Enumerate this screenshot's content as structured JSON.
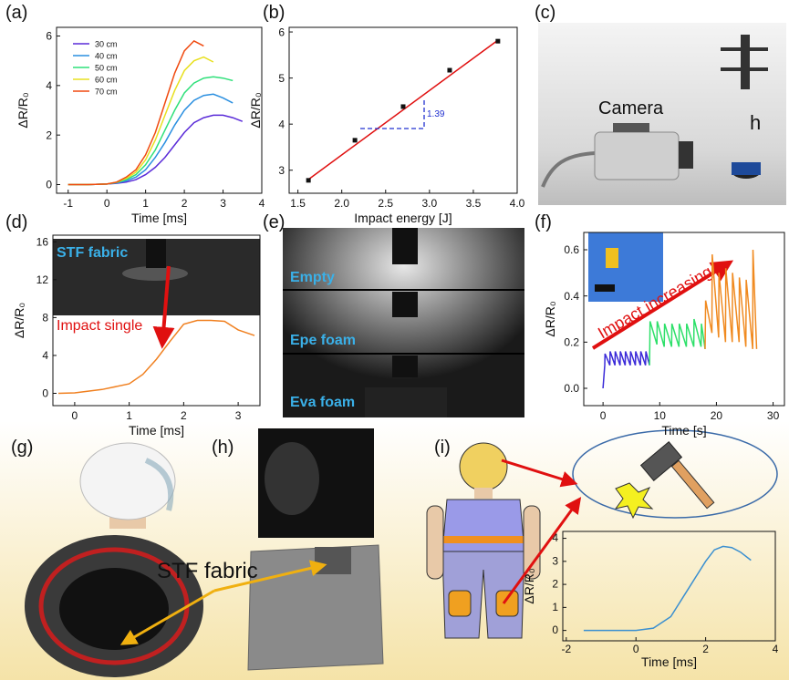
{
  "panels": [
    "(a)",
    "(b)",
    "(c)",
    "(d)",
    "(e)",
    "(f)",
    "(g)",
    "(h)",
    "(i)"
  ],
  "photo_labels": {
    "c": [
      "Camera",
      "h"
    ],
    "e": [
      "Empty",
      "Epe foam",
      "Eva foam"
    ],
    "gh": [
      "STF fabric"
    ]
  },
  "chart_data": [
    {
      "type": "line",
      "xlabel": "Time [ms]",
      "ylabel": "ΔR/R₀",
      "legend": "upper left",
      "xlim": [
        -1.3,
        4
      ],
      "xticks": [
        -1,
        0,
        1,
        2,
        3,
        4
      ],
      "ylim": [
        -0.35,
        6.35
      ],
      "yticks": [
        0,
        2,
        4,
        6
      ],
      "x": [
        -1,
        -0.5,
        0,
        0.25,
        0.5,
        0.75,
        1,
        1.25,
        1.5,
        1.75,
        2,
        2.25,
        2.5,
        2.75,
        3,
        3.25,
        3.5
      ],
      "series": [
        {
          "name": "30 cm",
          "color": "#5a2bd8",
          "values": [
            0,
            0,
            0.02,
            0.05,
            0.1,
            0.2,
            0.4,
            0.7,
            1.1,
            1.6,
            2.1,
            2.5,
            2.7,
            2.8,
            2.8,
            2.7,
            2.55
          ]
        },
        {
          "name": "40 cm",
          "color": "#2a8fe0",
          "values": [
            0,
            0,
            0.02,
            0.07,
            0.15,
            0.3,
            0.6,
            1.1,
            1.7,
            2.4,
            3.0,
            3.4,
            3.6,
            3.65,
            3.5,
            3.3,
            null
          ]
        },
        {
          "name": "50 cm",
          "color": "#2fe07a",
          "values": [
            0,
            0,
            0.02,
            0.08,
            0.2,
            0.4,
            0.8,
            1.4,
            2.2,
            3.0,
            3.7,
            4.1,
            4.3,
            4.35,
            4.3,
            4.2,
            null
          ]
        },
        {
          "name": "60 cm",
          "color": "#e8e020",
          "values": [
            0,
            0,
            0.02,
            0.1,
            0.25,
            0.5,
            1.0,
            1.8,
            2.8,
            3.8,
            4.6,
            5.0,
            5.15,
            4.95,
            null,
            null,
            null
          ]
        },
        {
          "name": "70 cm",
          "color": "#f04a10",
          "values": [
            0,
            0,
            0.02,
            0.1,
            0.3,
            0.6,
            1.2,
            2.1,
            3.3,
            4.5,
            5.4,
            5.8,
            5.6,
            null,
            null,
            null,
            null
          ]
        }
      ]
    },
    {
      "type": "scatter",
      "xlabel": "Impact energy [J]",
      "ylabel": "ΔR/R₀",
      "annotations": [
        "1.39"
      ],
      "xlim": [
        1.4,
        4.0
      ],
      "xticks": [
        1.5,
        {
          "value": 2,
          "label": "2.0"
        },
        2.5,
        {
          "value": 3,
          "label": "3.0"
        },
        3.5,
        {
          "value": 4,
          "label": "4.0"
        }
      ],
      "ylim": [
        2.5,
        6.1
      ],
      "yticks": [
        3,
        4,
        5,
        6
      ],
      "x": [
        1.62,
        2.15,
        2.7,
        3.23,
        3.78
      ],
      "values": [
        2.78,
        3.65,
        4.38,
        5.17,
        5.8
      ],
      "color": "#111111",
      "fit": {
        "x": [
          1.62,
          3.78
        ],
        "values": [
          2.8,
          5.82
        ],
        "color": "#e01010"
      }
    },
    {
      "type": "line",
      "xlabel": "Time [ms]",
      "ylabel": "ΔR/R₀",
      "annotations": [
        "STF fabric",
        "Impact single"
      ],
      "xlim": [
        -0.4,
        3.4
      ],
      "xticks": [
        0,
        1,
        2,
        3
      ],
      "ylim": [
        -1.3,
        16.7
      ],
      "yticks": [
        0,
        4,
        8,
        12,
        16
      ],
      "x": [
        -0.3,
        0,
        0.5,
        1,
        1.25,
        1.5,
        1.75,
        2,
        2.25,
        2.5,
        2.75,
        3,
        3.3
      ],
      "series": [
        {
          "color": "#f08020",
          "values": [
            0,
            0.05,
            0.4,
            1,
            2,
            3.6,
            5.5,
            7.3,
            7.7,
            7.7,
            7.6,
            6.7,
            6.1
          ]
        }
      ]
    },
    {
      "type": "line",
      "xlabel": "Time [s]",
      "ylabel": "ΔR/R₀",
      "annotations": [
        "Impact increasing"
      ],
      "xlim": [
        -3.4,
        32
      ],
      "xticks": [
        0,
        10,
        20,
        30
      ],
      "ylim": [
        -0.075,
        0.675
      ],
      "yticks": [
        {
          "value": 0,
          "label": "0.0"
        },
        0.2,
        0.4,
        0.6
      ],
      "series": [
        {
          "color": "#3a2ad8",
          "x": [
            0,
            0.3,
            0.35,
            1.2,
            1.25,
            2.1,
            2.15,
            3.0,
            3.05,
            3.9,
            3.95,
            4.8,
            4.85,
            5.7,
            5.75,
            6.6,
            6.65,
            7.5,
            7.55,
            8.2
          ],
          "values": [
            0,
            0.1,
            0.15,
            0.1,
            0.16,
            0.1,
            0.16,
            0.1,
            0.16,
            0.1,
            0.16,
            0.1,
            0.16,
            0.1,
            0.16,
            0.1,
            0.16,
            0.1,
            0.16,
            0.1
          ]
        },
        {
          "color": "#2ee06a",
          "x": [
            8.2,
            8.3,
            9.5,
            9.55,
            10.8,
            10.85,
            12.1,
            12.15,
            13.4,
            13.45,
            14.7,
            14.75,
            16.0,
            16.05,
            17.3,
            17.35,
            18.0
          ],
          "values": [
            0.1,
            0.29,
            0.19,
            0.29,
            0.18,
            0.28,
            0.18,
            0.28,
            0.18,
            0.28,
            0.18,
            0.28,
            0.18,
            0.3,
            0.18,
            0.28,
            0.17
          ]
        },
        {
          "color": "#f08a20",
          "x": [
            18,
            18.1,
            19.2,
            19.25,
            20.4,
            20.45,
            21.6,
            21.65,
            22.8,
            22.85,
            24.0,
            24.05,
            25.2,
            25.25,
            26.4,
            26.45,
            27.1
          ],
          "values": [
            0.17,
            0.38,
            0.24,
            0.58,
            0.22,
            0.5,
            0.2,
            0.52,
            0.2,
            0.5,
            0.2,
            0.48,
            0.18,
            0.47,
            0.17,
            0.6,
            0.17
          ]
        }
      ]
    },
    {
      "type": "line",
      "xlabel": "Time [ms]",
      "ylabel": "ΔR/R₀",
      "xlim": [
        -2.1,
        4
      ],
      "xticks": [
        -2,
        0,
        2,
        4
      ],
      "ylim": [
        -0.45,
        4.3
      ],
      "yticks": [
        0,
        1,
        2,
        3,
        4
      ],
      "x": [
        -1.5,
        -1,
        -0.5,
        0,
        0.5,
        1,
        1.5,
        2,
        2.25,
        2.5,
        2.75,
        3,
        3.3
      ],
      "series": [
        {
          "color": "#3a8fd0",
          "values": [
            0,
            0,
            0,
            0,
            0.1,
            0.6,
            1.8,
            3.0,
            3.5,
            3.65,
            3.6,
            3.4,
            3.05
          ]
        }
      ]
    }
  ]
}
